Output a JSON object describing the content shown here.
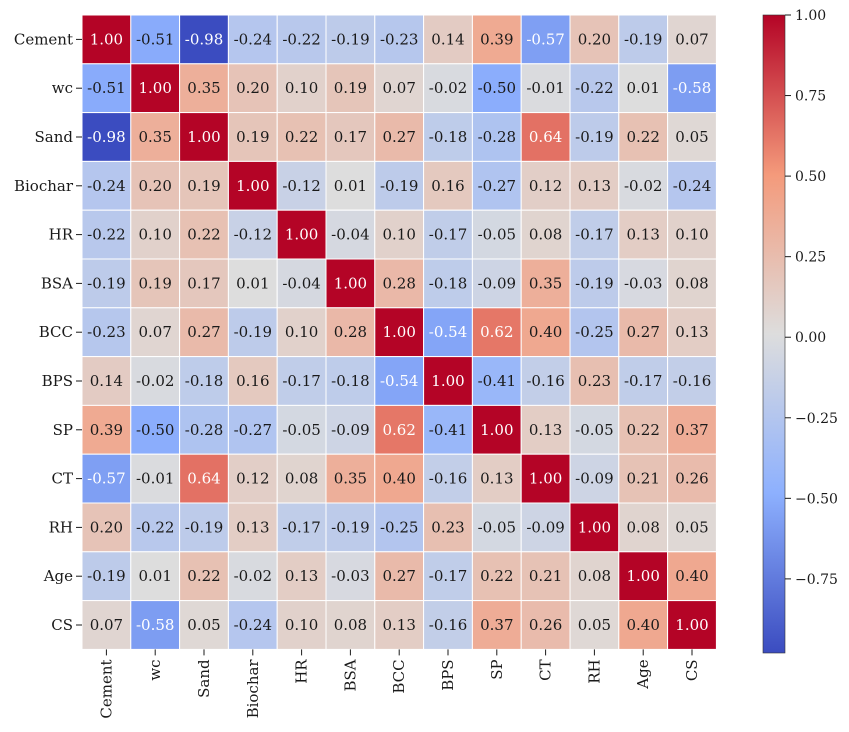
{
  "chart_data": {
    "type": "heatmap",
    "title": "",
    "xlabel": "",
    "ylabel": "",
    "variables": [
      "Cement",
      "wc",
      "Sand",
      "Biochar",
      "HR",
      "BSA",
      "BCC",
      "BPS",
      "SP",
      "CT",
      "RH",
      "Age",
      "CS"
    ],
    "matrix": [
      [
        1.0,
        -0.51,
        -0.98,
        -0.24,
        -0.22,
        -0.19,
        -0.23,
        0.14,
        0.39,
        -0.57,
        0.2,
        -0.19,
        0.07
      ],
      [
        -0.51,
        1.0,
        0.35,
        0.2,
        0.1,
        0.19,
        0.07,
        -0.02,
        -0.5,
        -0.01,
        -0.22,
        0.01,
        -0.58
      ],
      [
        -0.98,
        0.35,
        1.0,
        0.19,
        0.22,
        0.17,
        0.27,
        -0.18,
        -0.28,
        0.64,
        -0.19,
        0.22,
        0.05
      ],
      [
        -0.24,
        0.2,
        0.19,
        1.0,
        -0.12,
        0.01,
        -0.19,
        0.16,
        -0.27,
        0.12,
        0.13,
        -0.02,
        -0.24
      ],
      [
        -0.22,
        0.1,
        0.22,
        -0.12,
        1.0,
        -0.04,
        0.1,
        -0.17,
        -0.05,
        0.08,
        -0.17,
        0.13,
        0.1
      ],
      [
        -0.19,
        0.19,
        0.17,
        0.01,
        -0.04,
        1.0,
        0.28,
        -0.18,
        -0.09,
        0.35,
        -0.19,
        -0.03,
        0.08
      ],
      [
        -0.23,
        0.07,
        0.27,
        -0.19,
        0.1,
        0.28,
        1.0,
        -0.54,
        0.62,
        0.4,
        -0.25,
        0.27,
        0.13
      ],
      [
        0.14,
        -0.02,
        -0.18,
        0.16,
        -0.17,
        -0.18,
        -0.54,
        1.0,
        -0.41,
        -0.16,
        0.23,
        -0.17,
        -0.16
      ],
      [
        0.39,
        -0.5,
        -0.28,
        -0.27,
        -0.05,
        -0.09,
        0.62,
        -0.41,
        1.0,
        0.13,
        -0.05,
        0.22,
        0.37
      ],
      [
        -0.57,
        -0.01,
        0.64,
        0.12,
        0.08,
        0.35,
        0.4,
        -0.16,
        0.13,
        1.0,
        -0.09,
        0.21,
        0.26
      ],
      [
        0.2,
        -0.22,
        -0.19,
        0.13,
        -0.17,
        -0.19,
        -0.25,
        0.23,
        -0.05,
        -0.09,
        1.0,
        0.08,
        0.05
      ],
      [
        -0.19,
        0.01,
        0.22,
        -0.02,
        0.13,
        -0.03,
        0.27,
        -0.17,
        0.22,
        0.21,
        0.08,
        1.0,
        0.4
      ],
      [
        0.07,
        -0.58,
        0.05,
        -0.24,
        0.1,
        0.08,
        0.13,
        -0.16,
        0.37,
        0.26,
        0.05,
        0.4,
        1.0
      ]
    ],
    "value_format": "2 decimals",
    "colormap": "coolwarm",
    "color_range": [
      -0.98,
      1.0
    ],
    "colorbar": {
      "ticks": [
        1.0,
        0.75,
        0.5,
        0.25,
        0.0,
        -0.25,
        -0.5,
        -0.75
      ],
      "tick_labels": [
        "1.00",
        "0.75",
        "0.50",
        "0.25",
        "0.00",
        "−0.25",
        "−0.50",
        "−0.75"
      ],
      "placement": "right"
    },
    "grid": true
  }
}
